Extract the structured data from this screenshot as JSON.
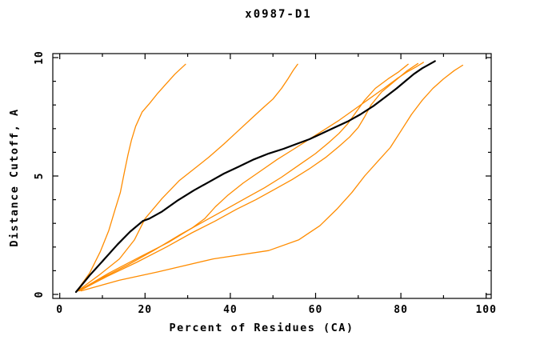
{
  "title": "x0987-D1",
  "chart_data": {
    "type": "line",
    "title": "x0987-D1",
    "xlabel": "Percent of Residues (CA)",
    "ylabel": "Distance Cutoff, A",
    "xlim": [
      0,
      100
    ],
    "ylim": [
      0,
      10
    ],
    "x_major_ticks": [
      0,
      20,
      40,
      60,
      80,
      100
    ],
    "x_tick_labels": [
      "0",
      "20",
      "40",
      "60",
      "80",
      "100"
    ],
    "x_minor_step": 10,
    "y_major_ticks": [
      0,
      5,
      10
    ],
    "y_tick_labels": [
      "0",
      "5",
      "10"
    ],
    "y_minor_step": 1,
    "grid": false,
    "legend_position": "none",
    "colors": {
      "model_orange": "#ff8c00",
      "reference_black": "#000000"
    },
    "series": [
      {
        "name": "orange-curve-1",
        "color": "#ff8c00",
        "width": 1.3,
        "points": [
          [
            4,
            0.15
          ],
          [
            7,
            0.9
          ],
          [
            9.5,
            1.8
          ],
          [
            11.5,
            2.7
          ],
          [
            13,
            3.6
          ],
          [
            14.2,
            4.3
          ],
          [
            15.2,
            5.2
          ],
          [
            16,
            5.9
          ],
          [
            16.8,
            6.5
          ],
          [
            17.8,
            7.1
          ],
          [
            19.3,
            7.7
          ],
          [
            21,
            8.05
          ],
          [
            23,
            8.5
          ],
          [
            25,
            8.9
          ],
          [
            27,
            9.3
          ],
          [
            29.5,
            9.72
          ]
        ]
      },
      {
        "name": "orange-curve-2",
        "color": "#ff8c00",
        "width": 1.3,
        "points": [
          [
            4.2,
            0.15
          ],
          [
            9.5,
            0.85
          ],
          [
            14,
            1.5
          ],
          [
            17.5,
            2.3
          ],
          [
            20,
            3.2
          ],
          [
            24,
            4.05
          ],
          [
            28,
            4.8
          ],
          [
            31.5,
            5.3
          ],
          [
            35,
            5.8
          ],
          [
            38.5,
            6.35
          ],
          [
            41.5,
            6.85
          ],
          [
            44.5,
            7.35
          ],
          [
            47.5,
            7.85
          ],
          [
            50,
            8.25
          ],
          [
            52,
            8.7
          ],
          [
            53.5,
            9.1
          ],
          [
            54.7,
            9.45
          ],
          [
            55.8,
            9.72
          ]
        ]
      },
      {
        "name": "orange-curve-3",
        "color": "#ff8c00",
        "width": 1.3,
        "points": [
          [
            4.4,
            0.15
          ],
          [
            11.5,
            0.9
          ],
          [
            19,
            1.6
          ],
          [
            25.5,
            2.2
          ],
          [
            31,
            2.8
          ],
          [
            34,
            3.2
          ],
          [
            36.5,
            3.7
          ],
          [
            39.5,
            4.2
          ],
          [
            43,
            4.7
          ],
          [
            47,
            5.2
          ],
          [
            51,
            5.7
          ],
          [
            55,
            6.15
          ],
          [
            58.5,
            6.55
          ],
          [
            62,
            6.95
          ],
          [
            65.5,
            7.35
          ],
          [
            69,
            7.8
          ],
          [
            72.5,
            8.25
          ],
          [
            76,
            8.7
          ],
          [
            79,
            9.1
          ],
          [
            81.5,
            9.4
          ],
          [
            83.5,
            9.6
          ],
          [
            85.3,
            9.8
          ]
        ]
      },
      {
        "name": "orange-curve-4",
        "color": "#ff8c00",
        "width": 1.3,
        "points": [
          [
            4.3,
            0.15
          ],
          [
            10,
            0.7
          ],
          [
            16,
            1.25
          ],
          [
            22,
            1.85
          ],
          [
            28,
            2.5
          ],
          [
            34,
            3.1
          ],
          [
            39,
            3.6
          ],
          [
            44,
            4.1
          ],
          [
            48,
            4.5
          ],
          [
            52,
            4.95
          ],
          [
            56,
            5.45
          ],
          [
            60,
            5.95
          ],
          [
            63,
            6.4
          ],
          [
            65.5,
            6.8
          ],
          [
            67.5,
            7.2
          ],
          [
            69.5,
            7.7
          ],
          [
            71.5,
            8.2
          ],
          [
            74,
            8.7
          ],
          [
            77,
            9.1
          ],
          [
            79.5,
            9.4
          ],
          [
            81.7,
            9.72
          ]
        ]
      },
      {
        "name": "orange-curve-5",
        "color": "#ff8c00",
        "width": 1.3,
        "points": [
          [
            4.6,
            0.15
          ],
          [
            11,
            0.75
          ],
          [
            18,
            1.35
          ],
          [
            25,
            2.0
          ],
          [
            31,
            2.6
          ],
          [
            36.5,
            3.1
          ],
          [
            41.5,
            3.6
          ],
          [
            46,
            4.0
          ],
          [
            50.5,
            4.45
          ],
          [
            54.5,
            4.85
          ],
          [
            58.5,
            5.3
          ],
          [
            62.5,
            5.8
          ],
          [
            65.5,
            6.25
          ],
          [
            68,
            6.65
          ],
          [
            70,
            7.05
          ],
          [
            71.5,
            7.5
          ],
          [
            73,
            8.0
          ],
          [
            75.5,
            8.55
          ],
          [
            78.5,
            9.0
          ],
          [
            81.5,
            9.45
          ],
          [
            84,
            9.75
          ]
        ]
      },
      {
        "name": "orange-curve-6",
        "color": "#ff8c00",
        "width": 1.3,
        "points": [
          [
            5,
            0.15
          ],
          [
            14,
            0.6
          ],
          [
            23,
            0.95
          ],
          [
            36,
            1.5
          ],
          [
            49,
            1.85
          ],
          [
            56,
            2.3
          ],
          [
            61,
            2.9
          ],
          [
            65,
            3.6
          ],
          [
            68.5,
            4.3
          ],
          [
            71.5,
            5.0
          ],
          [
            74.5,
            5.6
          ],
          [
            77.5,
            6.2
          ],
          [
            80,
            6.9
          ],
          [
            82.5,
            7.6
          ],
          [
            85,
            8.2
          ],
          [
            87.5,
            8.7
          ],
          [
            90,
            9.1
          ],
          [
            92.5,
            9.45
          ],
          [
            94.5,
            9.68
          ]
        ]
      },
      {
        "name": "black-reference-curve",
        "color": "#000000",
        "width": 2.2,
        "points": [
          [
            3.8,
            0.1
          ],
          [
            7,
            0.8
          ],
          [
            10.5,
            1.5
          ],
          [
            13.5,
            2.1
          ],
          [
            16.5,
            2.65
          ],
          [
            19.5,
            3.1
          ],
          [
            21,
            3.2
          ],
          [
            24,
            3.5
          ],
          [
            27.5,
            3.95
          ],
          [
            31.5,
            4.4
          ],
          [
            35,
            4.75
          ],
          [
            38.5,
            5.1
          ],
          [
            42,
            5.4
          ],
          [
            45.5,
            5.7
          ],
          [
            49,
            5.95
          ],
          [
            52.5,
            6.15
          ],
          [
            55.5,
            6.35
          ],
          [
            58.5,
            6.55
          ],
          [
            61.5,
            6.8
          ],
          [
            64.5,
            7.05
          ],
          [
            67.5,
            7.3
          ],
          [
            70.5,
            7.6
          ],
          [
            73.5,
            7.95
          ],
          [
            76.5,
            8.35
          ],
          [
            79,
            8.7
          ],
          [
            81,
            9.0
          ],
          [
            83,
            9.3
          ],
          [
            85,
            9.55
          ],
          [
            86.5,
            9.7
          ],
          [
            88,
            9.85
          ]
        ]
      }
    ]
  }
}
